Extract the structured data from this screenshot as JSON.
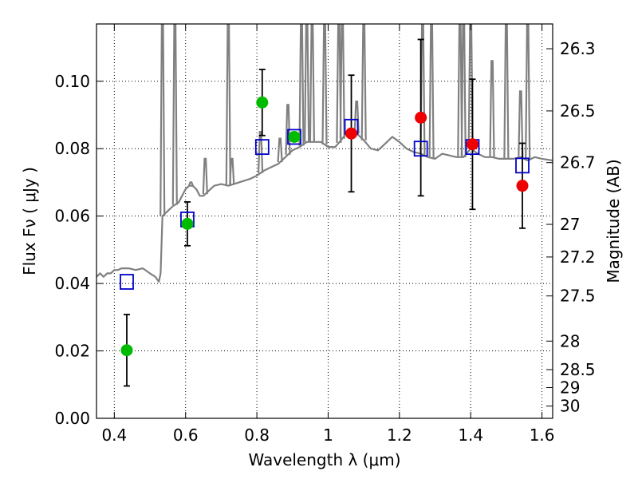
{
  "chart_data": {
    "type": "scatter",
    "xlabel": "Wavelength  λ (μm)",
    "ylabel": "Flux  Fν  ( μJy )",
    "y2label": "Magnitude (AB)",
    "xlim": [
      0.35,
      1.63
    ],
    "ylim": [
      0.0,
      0.117
    ],
    "grid": true,
    "x_ticks": [
      0.4,
      0.6,
      0.8,
      1.0,
      1.2,
      1.4,
      1.6
    ],
    "x_tick_labels": [
      "0.4",
      "0.6",
      "0.8",
      "1",
      "1.2",
      "1.4",
      "1.6"
    ],
    "y_ticks": [
      0.0,
      0.02,
      0.04,
      0.06,
      0.08,
      0.1
    ],
    "y_tick_labels": [
      "0.00",
      "0.02",
      "0.04",
      "0.06",
      "0.08",
      "0.10"
    ],
    "mag_ticks": [
      "26.3",
      "26.5",
      "26.7",
      "27",
      "27.2",
      "27.5",
      "28",
      "28.5",
      "29",
      "30"
    ],
    "series": [
      {
        "marker": "line",
        "color": "#808080",
        "points": [
          [
            0.35,
            0.042
          ],
          [
            0.36,
            0.043
          ],
          [
            0.37,
            0.042
          ],
          [
            0.38,
            0.043
          ],
          [
            0.39,
            0.043
          ],
          [
            0.4,
            0.044
          ],
          [
            0.41,
            0.044
          ],
          [
            0.42,
            0.0445
          ],
          [
            0.44,
            0.0445
          ],
          [
            0.46,
            0.044
          ],
          [
            0.48,
            0.0445
          ],
          [
            0.5,
            0.043
          ],
          [
            0.515,
            0.042
          ],
          [
            0.525,
            0.0405
          ],
          [
            0.53,
            0.043
          ],
          [
            0.535,
            0.06
          ],
          [
            0.545,
            0.061
          ],
          [
            0.555,
            0.062
          ],
          [
            0.565,
            0.063
          ],
          [
            0.58,
            0.064
          ],
          [
            0.59,
            0.066
          ],
          [
            0.6,
            0.068
          ],
          [
            0.61,
            0.069
          ],
          [
            0.62,
            0.069
          ],
          [
            0.63,
            0.068
          ],
          [
            0.64,
            0.066
          ],
          [
            0.65,
            0.066
          ],
          [
            0.66,
            0.067
          ],
          [
            0.68,
            0.069
          ],
          [
            0.7,
            0.0695
          ],
          [
            0.72,
            0.069
          ],
          [
            0.75,
            0.07
          ],
          [
            0.78,
            0.071
          ],
          [
            0.8,
            0.072
          ],
          [
            0.82,
            0.0735
          ],
          [
            0.84,
            0.0745
          ],
          [
            0.86,
            0.0755
          ],
          [
            0.88,
            0.0775
          ],
          [
            0.9,
            0.0795
          ],
          [
            0.92,
            0.0805
          ],
          [
            0.94,
            0.082
          ],
          [
            0.96,
            0.082
          ],
          [
            0.98,
            0.082
          ],
          [
            1.0,
            0.0805
          ],
          [
            1.02,
            0.0805
          ],
          [
            1.04,
            0.083
          ],
          [
            1.06,
            0.086
          ],
          [
            1.08,
            0.0845
          ],
          [
            1.1,
            0.0825
          ],
          [
            1.12,
            0.08
          ],
          [
            1.14,
            0.0795
          ],
          [
            1.16,
            0.0815
          ],
          [
            1.18,
            0.0835
          ],
          [
            1.2,
            0.082
          ],
          [
            1.22,
            0.08
          ],
          [
            1.24,
            0.079
          ],
          [
            1.26,
            0.0785
          ],
          [
            1.28,
            0.0775
          ],
          [
            1.3,
            0.077
          ],
          [
            1.32,
            0.0785
          ],
          [
            1.34,
            0.078
          ],
          [
            1.36,
            0.0775
          ],
          [
            1.38,
            0.0775
          ],
          [
            1.4,
            0.08
          ],
          [
            1.42,
            0.0785
          ],
          [
            1.44,
            0.0775
          ],
          [
            1.46,
            0.0775
          ],
          [
            1.48,
            0.077
          ],
          [
            1.5,
            0.077
          ],
          [
            1.52,
            0.077
          ],
          [
            1.54,
            0.0775
          ],
          [
            1.56,
            0.0765
          ],
          [
            1.58,
            0.0775
          ],
          [
            1.6,
            0.077
          ],
          [
            1.63,
            0.0765
          ]
        ],
        "emission_lines": [
          [
            0.535,
            0.117
          ],
          [
            0.57,
            0.117
          ],
          [
            0.615,
            0.07
          ],
          [
            0.655,
            0.077
          ],
          [
            0.72,
            0.117
          ],
          [
            0.73,
            0.077
          ],
          [
            0.81,
            0.085
          ],
          [
            0.865,
            0.083
          ],
          [
            0.887,
            0.093
          ],
          [
            0.925,
            0.117
          ],
          [
            0.94,
            0.117
          ],
          [
            0.955,
            0.117
          ],
          [
            0.99,
            0.117
          ],
          [
            1.03,
            0.117
          ],
          [
            1.04,
            0.117
          ],
          [
            1.08,
            0.094
          ],
          [
            1.1,
            0.117
          ],
          [
            1.265,
            0.117
          ],
          [
            1.29,
            0.117
          ],
          [
            1.37,
            0.117
          ],
          [
            1.38,
            0.117
          ],
          [
            1.4,
            0.117
          ],
          [
            1.46,
            0.106
          ],
          [
            1.5,
            0.117
          ],
          [
            1.54,
            0.097
          ],
          [
            1.56,
            0.117
          ]
        ]
      },
      {
        "marker": "open-square",
        "color": "#0000cc",
        "points": [
          [
            0.435,
            0.0405
          ],
          [
            0.605,
            0.059
          ],
          [
            0.815,
            0.0805
          ],
          [
            0.905,
            0.0835
          ],
          [
            1.065,
            0.0865
          ],
          [
            1.26,
            0.08
          ],
          [
            1.405,
            0.0805
          ],
          [
            1.545,
            0.075
          ]
        ]
      },
      {
        "marker": "filled-circle",
        "color": "#00bb00",
        "points": [
          [
            0.435,
            0.0202,
            0.0106
          ],
          [
            0.605,
            0.0577,
            0.0065
          ],
          [
            0.815,
            0.0937,
            0.0098
          ],
          [
            0.905,
            0.0835,
            0.0
          ]
        ]
      },
      {
        "marker": "filled-circle",
        "color": "#ee0000",
        "points": [
          [
            1.065,
            0.0845,
            0.0173
          ],
          [
            1.26,
            0.0892,
            0.0232
          ],
          [
            1.405,
            0.0813,
            0.0193
          ],
          [
            1.545,
            0.069,
            0.0126
          ]
        ]
      }
    ]
  }
}
